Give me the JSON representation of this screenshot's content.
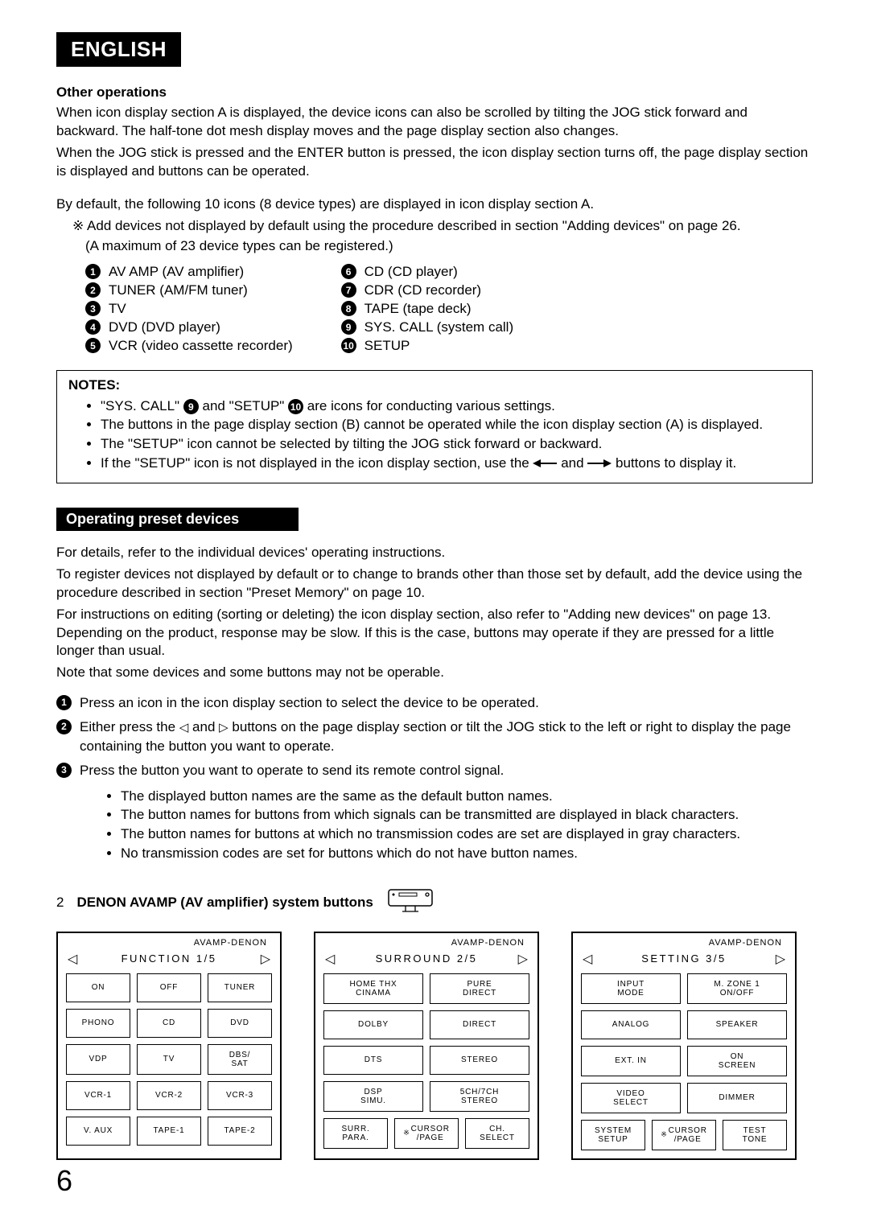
{
  "language_tab": "ENGLISH",
  "section1_title": "Other operations",
  "section1_p1": "When icon display section A is displayed, the device icons can also be scrolled by tilting the JOG stick forward and backward.  The half-tone dot mesh display moves and the page display section also changes.",
  "section1_p2": "When the JOG stick is pressed and the ENTER button is pressed, the icon display section turns off, the page display section is displayed and buttons can be operated.",
  "section1_p3": "By default, the following 10 icons (8 device types) are displayed in icon display section A.",
  "section1_note1": "Add devices not displayed by default using the procedure described in section \"Adding devices\" on page 26.",
  "section1_note2": "(A maximum of 23 device types can be registered.)",
  "devices_left": [
    {
      "n": "1",
      "label": "AV AMP (AV amplifier)"
    },
    {
      "n": "2",
      "label": "TUNER (AM/FM tuner)"
    },
    {
      "n": "3",
      "label": "TV"
    },
    {
      "n": "4",
      "label": "DVD (DVD player)"
    },
    {
      "n": "5",
      "label": "VCR (video cassette recorder)"
    }
  ],
  "devices_right": [
    {
      "n": "6",
      "label": "CD (CD player)"
    },
    {
      "n": "7",
      "label": "CDR (CD recorder)"
    },
    {
      "n": "8",
      "label": "TAPE (tape deck)"
    },
    {
      "n": "9",
      "label": "SYS. CALL (system call)"
    },
    {
      "n": "10",
      "label": "SETUP"
    }
  ],
  "notes_title": "NOTES:",
  "notes": [
    "\"SYS. CALL\" ⑨ and \"SETUP\" ⑩ are icons for conducting various settings.",
    "The buttons in the page display section (B) cannot be operated while the icon display section (A) is displayed.",
    "The \"SETUP\" icon cannot be selected by tilting the JOG stick forward or backward.",
    "If the \"SETUP\" icon is not displayed in the icon display section, use the  ◀━  and  ━▶  buttons to display it."
  ],
  "section2_bar": "Operating preset devices",
  "section2_p1": "For details, refer to the individual devices' operating instructions.",
  "section2_p2": "To register devices not displayed by default or to change to brands other than those set by default, add the device using the procedure described in section \"Preset Memory\" on page 10.",
  "section2_p3": "For instructions on editing (sorting or deleting) the icon display section, also refer to \"Adding new devices\" on page 13. Depending on the product, response may be slow. If this is the case, buttons may operate if they are pressed for a little longer than usual.",
  "section2_p4": "Note that some devices and some buttons may not be operable.",
  "steps": [
    {
      "n": "1",
      "text": "Press an icon in the icon display section to select the device to be operated."
    },
    {
      "n": "2",
      "text": "Either press the  ◁  and  ▷  buttons on the page display section or tilt the JOG stick to the left or right to display the page containing the button you want to operate."
    },
    {
      "n": "3",
      "text": "Press the button you want to operate to send its remote control signal."
    }
  ],
  "sub_bullets": [
    "The displayed button names are the same as the default button names.",
    "The button names for buttons from which signals can be transmitted are displayed in black characters.",
    "The button names for buttons at which no transmission codes are set are displayed in gray characters.",
    "No transmission codes are set for buttons which do not have button names."
  ],
  "panel_num": "2",
  "panel_title": "DENON AVAMP (AV amplifier) system buttons",
  "screen_brand": "AVAMP-DENON",
  "screens": [
    {
      "header": "FUNCTION  1/5",
      "cols": 3,
      "buttons": [
        "ON",
        "OFF",
        "TUNER",
        "PHONO",
        "CD",
        "DVD",
        "VDP",
        "TV",
        "DBS/\nSAT",
        "VCR-1",
        "VCR-2",
        "VCR-3",
        "V. AUX",
        "TAPE-1",
        "TAPE-2"
      ]
    },
    {
      "header": "SURROUND 2/5",
      "cols": 2,
      "buttons": [
        "HOME THX\nCINAMA",
        "PURE\nDIRECT",
        "DOLBY",
        "DIRECT",
        "DTS",
        "STEREO",
        "DSP\nSIMU.",
        "5CH/7CH\nSTEREO"
      ],
      "footer": [
        "SURR.\nPARA.",
        "✳CURSOR\n/PAGE",
        "CH.\nSELECT"
      ]
    },
    {
      "header": "SETTING   3/5",
      "cols": 2,
      "buttons": [
        "INPUT\nMODE",
        "M. ZONE 1\nON/OFF",
        "ANALOG",
        "SPEAKER",
        "EXT. IN",
        "ON\nSCREEN",
        "VIDEO\nSELECT",
        "DIMMER"
      ],
      "footer": [
        "SYSTEM\nSETUP",
        "✳CURSOR\n/PAGE",
        "TEST\nTONE"
      ]
    }
  ],
  "page_number": "6"
}
